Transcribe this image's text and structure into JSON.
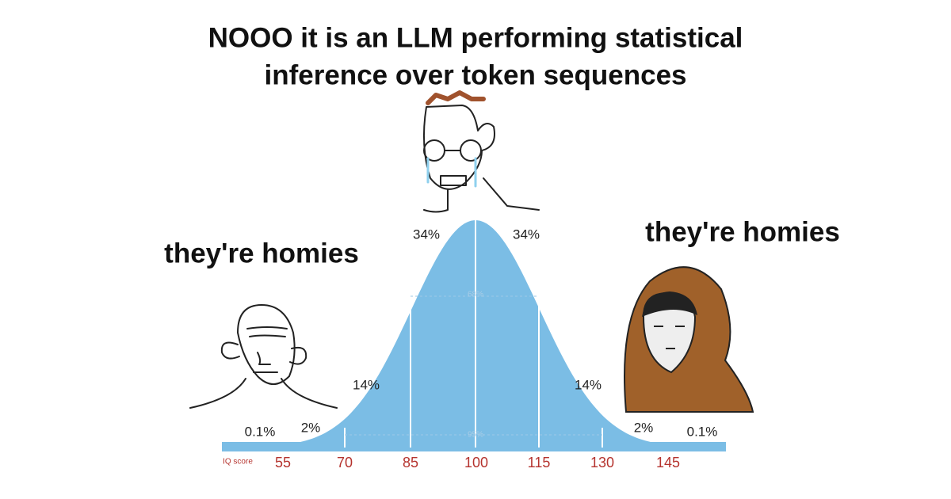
{
  "title_lines": [
    "NOOO it is an LLM performing statistical",
    "inference over token sequences"
  ],
  "left_caption": "they're homies",
  "right_caption": "they're homies",
  "curve": {
    "segment_labels": [
      "0.1%",
      "2%",
      "14%",
      "34%",
      "34%",
      "14%",
      "2%",
      "0.1%"
    ],
    "inner_labels": [
      "68%",
      "95%"
    ],
    "axis_label": "IQ score",
    "axis_ticks": [
      55,
      70,
      85,
      100,
      115,
      130,
      145
    ]
  }
}
